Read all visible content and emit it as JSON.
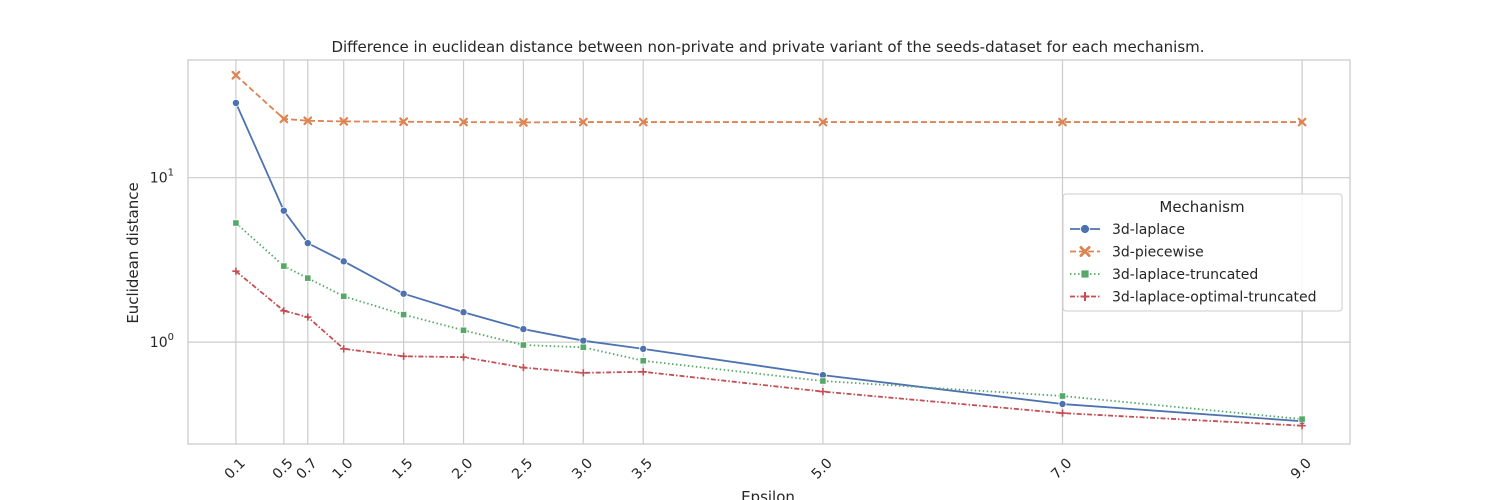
{
  "chart_data": {
    "type": "line",
    "title": "Difference in euclidean distance between non-private and private variant of the seeds-dataset for each mechanism.",
    "xlabel": "Epsilon",
    "ylabel": "Euclidean distance",
    "x": [
      0.1,
      0.5,
      0.7,
      1.0,
      1.5,
      2.0,
      2.5,
      3.0,
      3.5,
      5.0,
      7.0,
      9.0
    ],
    "x_tick_labels": [
      "0.1",
      "0.5",
      "0.7",
      "1.0",
      "1.5",
      "2.0",
      "2.5",
      "3.0",
      "3.5",
      "5.0",
      "7.0",
      "9.0"
    ],
    "xlim": [
      -0.3,
      9.4
    ],
    "yscale": "log",
    "ylim": [
      0.24,
      52
    ],
    "y_ticks": [
      {
        "value": 1,
        "base": "10",
        "exp": "0"
      },
      {
        "value": 10,
        "base": "10",
        "exp": "1"
      }
    ],
    "grid": true,
    "legend": {
      "title": "Mechanism",
      "placement": "center-right"
    },
    "series": [
      {
        "name": "3d-laplace",
        "color": "#4c72b0",
        "dash": "solid",
        "marker": "circle",
        "values": [
          28.5,
          6.3,
          4.0,
          3.1,
          1.97,
          1.52,
          1.2,
          1.02,
          0.91,
          0.63,
          0.42,
          0.33
        ]
      },
      {
        "name": "3d-piecewise",
        "color": "#dd8452",
        "dash": "dashed",
        "marker": "x",
        "values": [
          42.0,
          22.8,
          22.2,
          22.0,
          21.9,
          21.8,
          21.7,
          21.8,
          21.8,
          21.8,
          21.8,
          21.8
        ]
      },
      {
        "name": "3d-laplace-truncated",
        "color": "#55a868",
        "dash": "dotted",
        "marker": "square",
        "values": [
          5.3,
          2.9,
          2.45,
          1.9,
          1.47,
          1.18,
          0.96,
          0.93,
          0.77,
          0.58,
          0.47,
          0.34
        ]
      },
      {
        "name": "3d-laplace-optimal-truncated",
        "color": "#c44e52",
        "dash": "dashdot",
        "marker": "plus",
        "values": [
          2.7,
          1.55,
          1.42,
          0.91,
          0.82,
          0.81,
          0.7,
          0.65,
          0.66,
          0.5,
          0.37,
          0.31
        ]
      }
    ]
  }
}
